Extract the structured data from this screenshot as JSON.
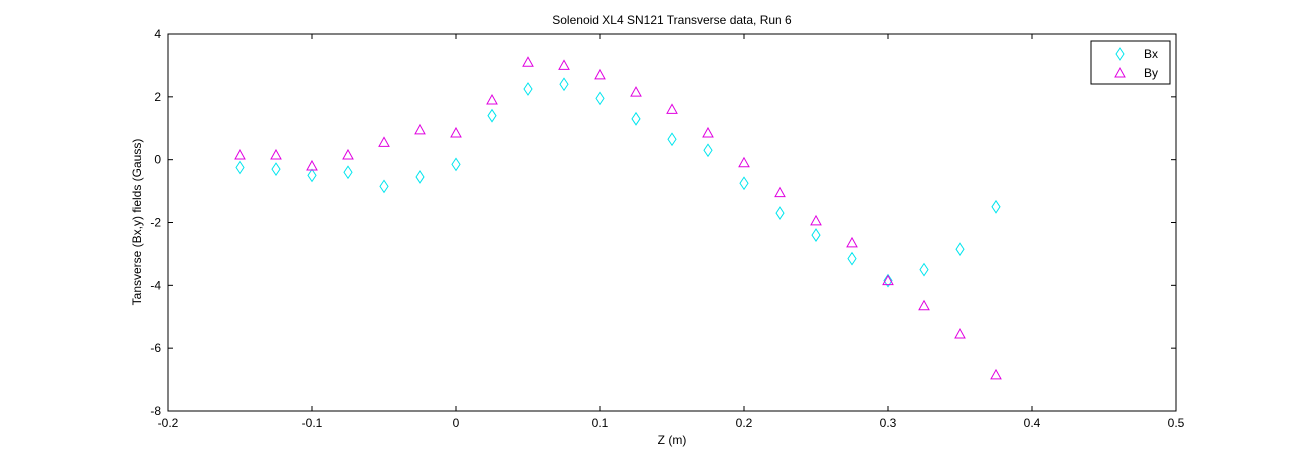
{
  "chart_data": {
    "type": "scatter",
    "title": "Solenoid XL4 SN121 Transverse data, Run 6",
    "xlabel": "Z (m)",
    "ylabel": "Tansverse (Bx,y) fields  (Gauss)",
    "xlim": [
      -0.2,
      0.5
    ],
    "ylim": [
      -8,
      4
    ],
    "xticks": [
      -0.2,
      -0.1,
      0,
      0.1,
      0.2,
      0.3,
      0.4,
      0.5
    ],
    "xtick_labels": [
      "-0.2",
      "-0.1",
      "0",
      "0.1",
      "0.2",
      "0.3",
      "0.4",
      "0.5"
    ],
    "yticks": [
      -8,
      -6,
      -4,
      -2,
      0,
      2,
      4
    ],
    "ytick_labels": [
      "-8",
      "-6",
      "-4",
      "-2",
      "0",
      "2",
      "4"
    ],
    "grid": false,
    "legend_position": "top-right",
    "x": [
      -0.15,
      -0.125,
      -0.1,
      -0.075,
      -0.05,
      -0.025,
      0,
      0.025,
      0.05,
      0.075,
      0.1,
      0.125,
      0.15,
      0.175,
      0.2,
      0.225,
      0.25,
      0.275,
      0.3,
      0.325,
      0.35,
      0.375
    ],
    "series": [
      {
        "name": "Bx",
        "marker": "diamond",
        "color": "#00e5ee",
        "values": [
          -0.25,
          -0.3,
          -0.5,
          -0.4,
          -0.85,
          -0.55,
          -0.15,
          1.4,
          2.25,
          2.4,
          1.95,
          1.3,
          0.65,
          0.3,
          -0.75,
          -1.7,
          -2.4,
          -3.15,
          -3.85,
          -3.5,
          -2.85,
          -1.5
        ]
      },
      {
        "name": "By",
        "marker": "triangle",
        "color": "#e000e0",
        "values": [
          0.15,
          0.15,
          -0.2,
          0.15,
          0.55,
          0.95,
          0.85,
          1.9,
          3.1,
          3.0,
          2.7,
          2.15,
          1.6,
          0.85,
          -0.1,
          -1.05,
          -1.95,
          -2.65,
          -3.85,
          -4.65,
          -5.55,
          -6.85
        ]
      }
    ]
  }
}
